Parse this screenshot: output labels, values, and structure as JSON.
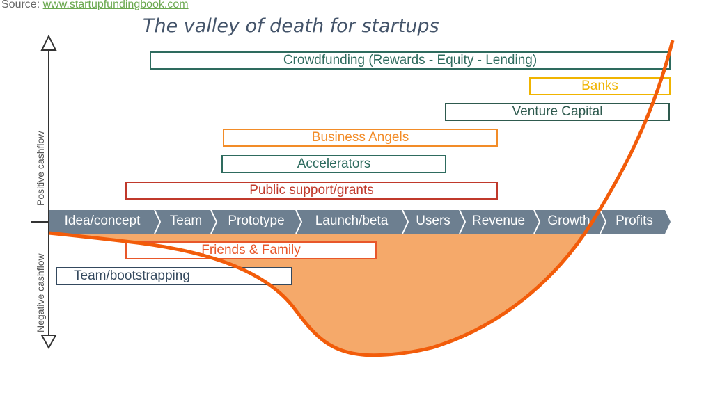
{
  "source": {
    "label": "Source:",
    "link": "www.startupfundingbook.com"
  },
  "title": "The valley of death for startups",
  "axis": {
    "positive": "Positive cashflow",
    "negative": "Negative cashflow"
  },
  "stages": [
    "Idea/concept",
    "Team",
    "Prototype",
    "Launch/beta",
    "Users",
    "Revenue",
    "Growth",
    "Profits"
  ],
  "funding": [
    {
      "label": "Crowdfunding (Rewards - Equity - Lending)",
      "color": "#2e6b5e"
    },
    {
      "label": "Banks",
      "color": "#f0b400"
    },
    {
      "label": "Venture Capital",
      "color": "#2e5a4e"
    },
    {
      "label": "Business Angels",
      "color": "#f28c28"
    },
    {
      "label": "Accelerators",
      "color": "#2e6b5e"
    },
    {
      "label": "Public support/grants",
      "color": "#c0392b"
    },
    {
      "label": "Friends & Family",
      "color": "#e8572a"
    },
    {
      "label": "Team/bootstrapping",
      "color": "#34495e"
    }
  ],
  "colors": {
    "stage_bar": "#6d7f90",
    "curve": "#f25c0a",
    "valley_fill": "#f5a96a"
  }
}
